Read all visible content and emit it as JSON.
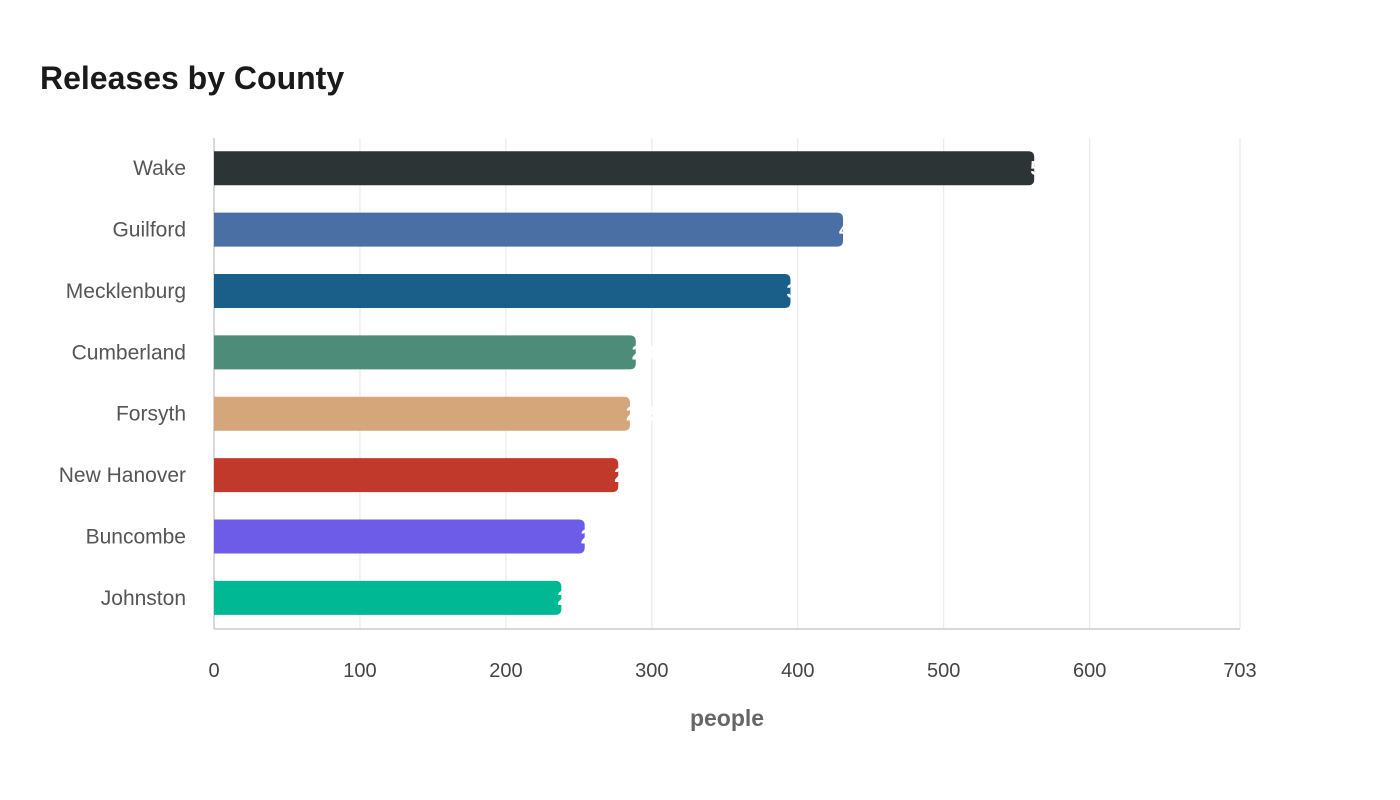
{
  "chart_data": {
    "type": "bar",
    "orientation": "horizontal",
    "title": "Releases by County",
    "xlabel": "people",
    "ylabel": "",
    "categories": [
      "Wake",
      "Guilford",
      "Mecklenburg",
      "Cumberland",
      "Forsyth",
      "New Hanover",
      "Buncombe",
      "Johnston"
    ],
    "values": [
      562,
      431,
      395,
      289,
      285,
      277,
      254,
      238
    ],
    "colors": [
      "#2d3436",
      "#4a6fa5",
      "#1a5f8a",
      "#4e8c7a",
      "#d4a67a",
      "#c0392b",
      "#6c5ce7",
      "#00b894"
    ],
    "xlim": [
      0,
      703
    ],
    "x_ticks": [
      0,
      100,
      200,
      300,
      400,
      500,
      600,
      703
    ],
    "grid": true,
    "legend": "none"
  }
}
